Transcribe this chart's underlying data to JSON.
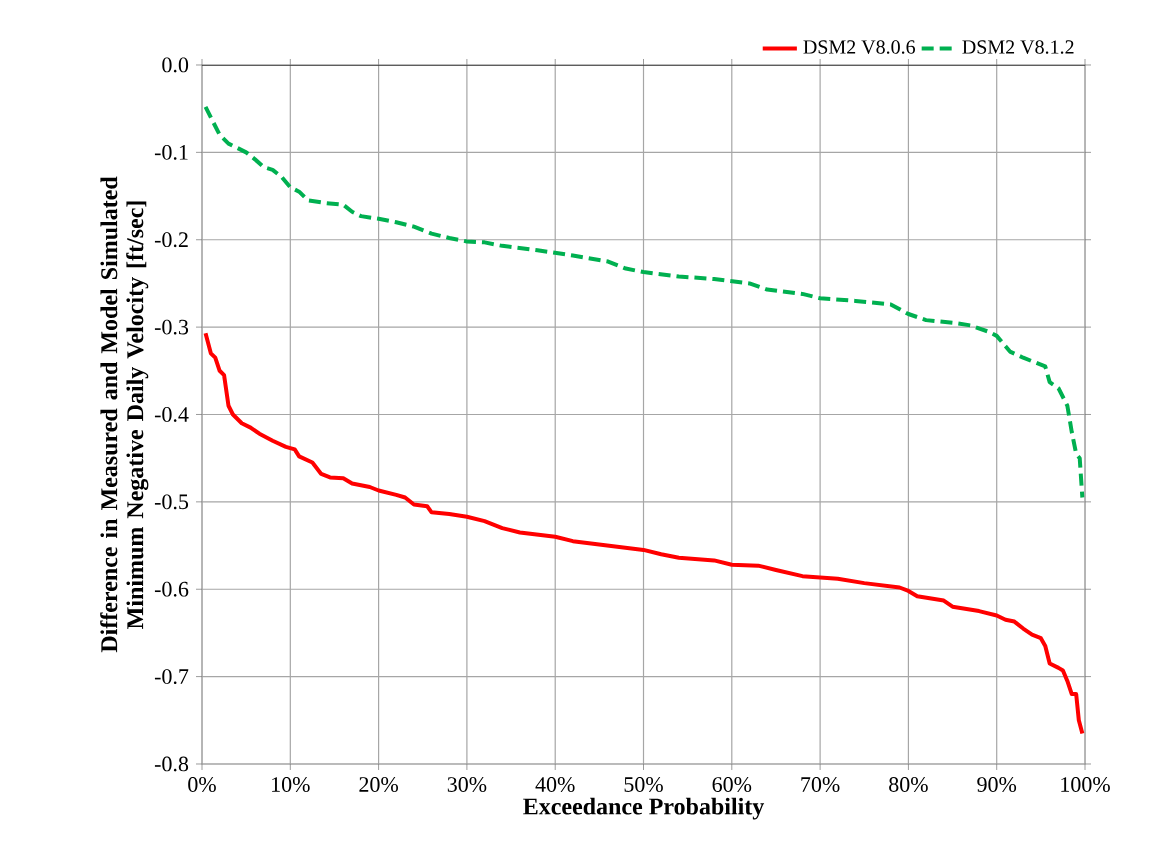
{
  "chart_data": {
    "type": "line",
    "xlabel": "Exceedance Probability",
    "ylabel": "Difference in Measured and Model Simulated Minimum Negative Daily Velocity [ft/sec]",
    "xlim": [
      0,
      100
    ],
    "ylim": [
      -0.8,
      0
    ],
    "xticks": [
      {
        "value": 0,
        "label": "0%"
      },
      {
        "value": 10,
        "label": "10%"
      },
      {
        "value": 20,
        "label": "20%"
      },
      {
        "value": 30,
        "label": "30%"
      },
      {
        "value": 40,
        "label": "40%"
      },
      {
        "value": 50,
        "label": "50%"
      },
      {
        "value": 60,
        "label": "60%"
      },
      {
        "value": 70,
        "label": "70%"
      },
      {
        "value": 80,
        "label": "80%"
      },
      {
        "value": 90,
        "label": "90%"
      },
      {
        "value": 100,
        "label": "100%"
      }
    ],
    "yticks": [
      {
        "value": -0.8,
        "label": "-0.8"
      },
      {
        "value": -0.7,
        "label": "-0.7"
      },
      {
        "value": -0.6,
        "label": "-0.6"
      },
      {
        "value": -0.5,
        "label": "-0.5"
      },
      {
        "value": -0.4,
        "label": "-0.4"
      },
      {
        "value": -0.3,
        "label": "-0.3"
      },
      {
        "value": -0.2,
        "label": "-0.2"
      },
      {
        "value": -0.1,
        "label": "-0.1"
      },
      {
        "value": 0,
        "label": "0.0"
      }
    ],
    "grid": true,
    "legend": "top right",
    "series": [
      {
        "name": "DSM2 V8.0.6",
        "color": "#ff0000",
        "line_style": "solid",
        "x": [
          0.4,
          1,
          1.5,
          2,
          2.5,
          3,
          3.5,
          4.5,
          5.5,
          6.5,
          8,
          9.5,
          10.5,
          11,
          12.5,
          13.5,
          14.5,
          16,
          17,
          19,
          20,
          22,
          23,
          24,
          25.5,
          26,
          28,
          30,
          32,
          34,
          36,
          40,
          42,
          46,
          50,
          52,
          54,
          58,
          60,
          63,
          65,
          68,
          72,
          75,
          79,
          80,
          81,
          84,
          85,
          88,
          90,
          91,
          92,
          93,
          94,
          95,
          95.5,
          96,
          97,
          97.5,
          98,
          98.5,
          99,
          99.3,
          99.7
        ],
        "values": [
          -0.307,
          -0.33,
          -0.335,
          -0.35,
          -0.355,
          -0.39,
          -0.4,
          -0.41,
          -0.415,
          -0.422,
          -0.43,
          -0.437,
          -0.44,
          -0.448,
          -0.455,
          -0.468,
          -0.472,
          -0.473,
          -0.479,
          -0.483,
          -0.487,
          -0.492,
          -0.495,
          -0.503,
          -0.505,
          -0.512,
          -0.514,
          -0.517,
          -0.522,
          -0.53,
          -0.535,
          -0.54,
          -0.545,
          -0.55,
          -0.555,
          -0.56,
          -0.564,
          -0.567,
          -0.572,
          -0.573,
          -0.578,
          -0.585,
          -0.588,
          -0.593,
          -0.598,
          -0.602,
          -0.608,
          -0.613,
          -0.62,
          -0.625,
          -0.63,
          -0.635,
          -0.637,
          -0.645,
          -0.652,
          -0.656,
          -0.665,
          -0.685,
          -0.69,
          -0.693,
          -0.705,
          -0.72,
          -0.72,
          -0.75,
          -0.765
        ]
      },
      {
        "name": "DSM2 V8.1.2",
        "color": "#00b050",
        "line_style": "dashed",
        "x": [
          0.4,
          1,
          2,
          3,
          4,
          5,
          6,
          7,
          8,
          9,
          10,
          11,
          12,
          14,
          16,
          17,
          18,
          20,
          22,
          24,
          26,
          28,
          30,
          32,
          34,
          38,
          42,
          46,
          48,
          50,
          54,
          58,
          62,
          64,
          68,
          70,
          74,
          78,
          80,
          82,
          85,
          87,
          89,
          90,
          91,
          91.5,
          93,
          95,
          95.5,
          96,
          97,
          98,
          98.5,
          99,
          99.4,
          99.7
        ],
        "values": [
          -0.048,
          -0.06,
          -0.08,
          -0.09,
          -0.095,
          -0.1,
          -0.108,
          -0.117,
          -0.12,
          -0.128,
          -0.14,
          -0.145,
          -0.155,
          -0.158,
          -0.16,
          -0.168,
          -0.173,
          -0.176,
          -0.18,
          -0.185,
          -0.193,
          -0.198,
          -0.202,
          -0.203,
          -0.207,
          -0.212,
          -0.218,
          -0.225,
          -0.233,
          -0.237,
          -0.242,
          -0.245,
          -0.25,
          -0.257,
          -0.262,
          -0.267,
          -0.27,
          -0.274,
          -0.285,
          -0.292,
          -0.295,
          -0.298,
          -0.305,
          -0.31,
          -0.322,
          -0.328,
          -0.335,
          -0.343,
          -0.345,
          -0.363,
          -0.37,
          -0.39,
          -0.42,
          -0.445,
          -0.45,
          -0.495
        ]
      }
    ]
  }
}
